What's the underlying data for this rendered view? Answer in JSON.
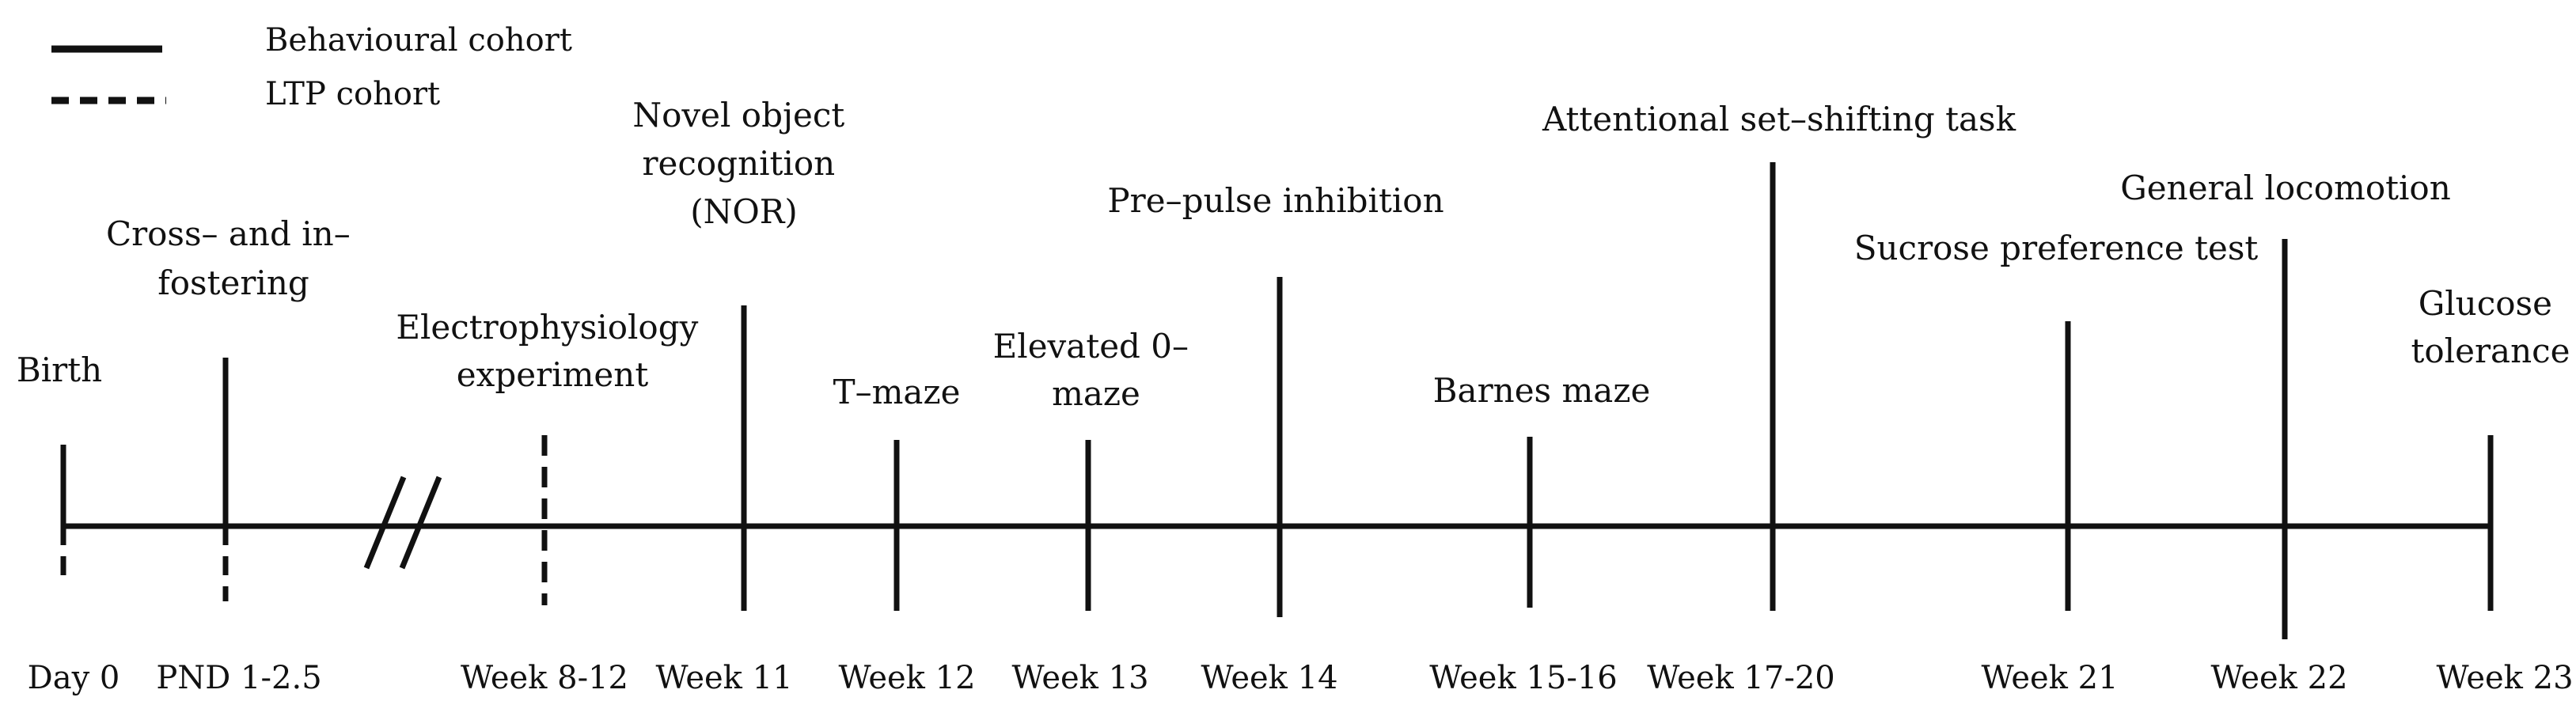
{
  "legend": {
    "solid_label": "Behavioural cohort",
    "dashed_label": "LTP cohort"
  },
  "events": {
    "birth": {
      "lines": [
        "Birth"
      ],
      "week": "Day 0"
    },
    "fostering": {
      "lines": [
        "Cross– and in–",
        "fostering"
      ],
      "week": "PND 1-2.5"
    },
    "ephys": {
      "lines": [
        "Electrophysiology",
        "experiment"
      ],
      "week": "Week 8-12"
    },
    "nor": {
      "lines": [
        "Novel object",
        "recognition",
        "(NOR)"
      ],
      "week": "Week 11"
    },
    "tmaze": {
      "lines": [
        "T–maze"
      ],
      "week": "Week 12"
    },
    "ezm": {
      "lines": [
        "Elevated 0–",
        "maze"
      ],
      "week": "Week 13"
    },
    "ppi": {
      "lines": [
        "Pre–pulse inhibition"
      ],
      "week": "Week 14"
    },
    "barnes": {
      "lines": [
        "Barnes maze"
      ],
      "week": "Week 15-16"
    },
    "asst": {
      "lines": [
        "Attentional set–shifting task"
      ],
      "week": "Week 17-20"
    },
    "sucrose": {
      "lines": [
        "Sucrose preference test"
      ],
      "week": "Week 21"
    },
    "locomotion": {
      "lines": [
        "General locomotion"
      ],
      "week": "Week 22"
    },
    "glucose": {
      "lines": [
        "Glucose",
        "tolerance"
      ],
      "week": "Week 23"
    }
  },
  "colors": {
    "ink": "#111111",
    "background": "#ffffff"
  }
}
